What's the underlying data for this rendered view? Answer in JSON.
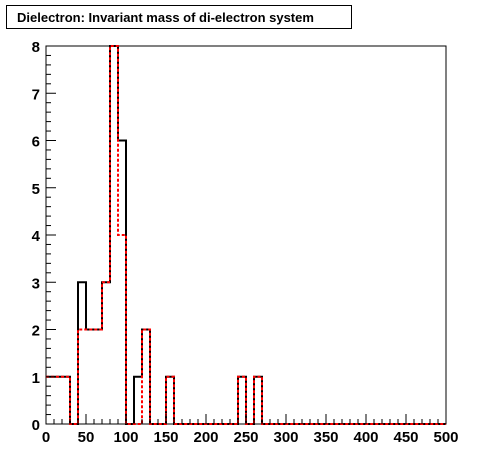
{
  "chart_data": {
    "type": "histogram",
    "title": "Dielectron: Invariant mass of di-electron system",
    "xlabel": "",
    "ylabel": "",
    "xlim": [
      0,
      500
    ],
    "ylim": [
      0,
      8
    ],
    "bin_width": 10,
    "x_ticks": [
      0,
      50,
      100,
      150,
      200,
      250,
      300,
      350,
      400,
      450,
      500
    ],
    "y_ticks": [
      0,
      1,
      2,
      3,
      4,
      5,
      6,
      7,
      8
    ],
    "grid": false,
    "series": [
      {
        "style": "solid",
        "color": "#000000",
        "values": [
          1,
          1,
          1,
          0,
          3,
          2,
          2,
          3,
          8,
          6,
          0,
          1,
          2,
          0,
          0,
          1,
          0,
          0,
          0,
          0,
          0,
          0,
          0,
          0,
          1,
          0,
          1,
          0,
          0,
          0,
          0,
          0,
          0,
          0,
          0,
          0,
          0,
          0,
          0,
          0,
          0,
          0,
          0,
          0,
          0,
          0,
          0,
          0,
          0,
          0
        ]
      },
      {
        "style": "dashed",
        "color": "#ff0000",
        "values": [
          1,
          1,
          1,
          0,
          2,
          2,
          2,
          3,
          8,
          4,
          0,
          0,
          2,
          0,
          0,
          1,
          0,
          0,
          0,
          0,
          0,
          0,
          0,
          0,
          1,
          0,
          1,
          0,
          0,
          0,
          0,
          0,
          0,
          0,
          0,
          0,
          0,
          0,
          0,
          0,
          0,
          0,
          0,
          0,
          0,
          0,
          0,
          0,
          0,
          0
        ]
      }
    ]
  }
}
